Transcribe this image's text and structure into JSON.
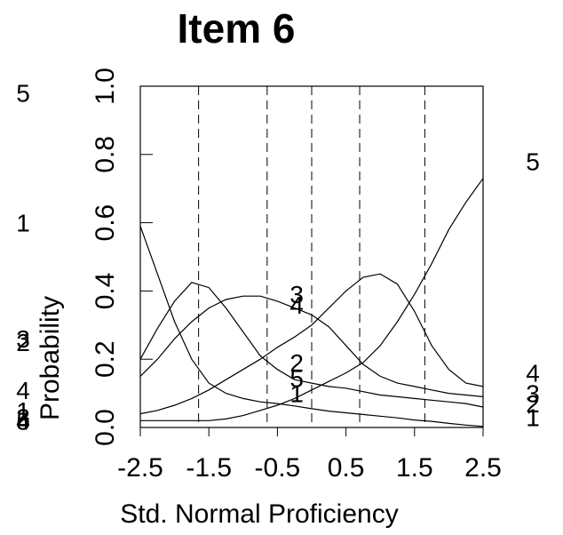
{
  "chart_data": {
    "type": "line",
    "title": "Item 6",
    "xlabel": "Std. Normal Proficiency",
    "ylabel": "Probability",
    "xlim": [
      -2.5,
      2.5
    ],
    "ylim": [
      0,
      1
    ],
    "x_ticks": [
      "-2.5",
      "-1.5",
      "-0.5",
      "0.5",
      "1.5",
      "2.5"
    ],
    "y_ticks": [
      "0.0",
      "0.2",
      "0.4",
      "0.6",
      "0.8",
      "1.0"
    ],
    "grid": false,
    "vlines_dashed": [
      -1.65,
      -0.65,
      0.0,
      0.7,
      1.65
    ],
    "x": [
      -2.5,
      -2.25,
      -2.0,
      -1.75,
      -1.5,
      -1.25,
      -1.0,
      -0.75,
      -0.5,
      -0.25,
      0.0,
      0.25,
      0.5,
      0.75,
      1.0,
      1.25,
      1.5,
      1.75,
      2.0,
      2.25,
      2.5
    ],
    "series": [
      {
        "name": "1",
        "values": [
          0.59,
          0.45,
          0.31,
          0.2,
          0.13,
          0.1,
          0.085,
          0.075,
          0.07,
          0.063,
          0.055,
          0.048,
          0.043,
          0.038,
          0.033,
          0.028,
          0.022,
          0.018,
          0.012,
          0.007,
          0.003
        ]
      },
      {
        "name": "2",
        "values": [
          0.2,
          0.29,
          0.37,
          0.425,
          0.41,
          0.35,
          0.28,
          0.21,
          0.17,
          0.14,
          0.13,
          0.12,
          0.115,
          0.105,
          0.095,
          0.09,
          0.085,
          0.08,
          0.075,
          0.07,
          0.06
        ]
      },
      {
        "name": "3",
        "values": [
          0.15,
          0.2,
          0.26,
          0.31,
          0.35,
          0.375,
          0.385,
          0.385,
          0.37,
          0.35,
          0.33,
          0.295,
          0.24,
          0.185,
          0.15,
          0.13,
          0.12,
          0.11,
          0.1,
          0.095,
          0.09
        ]
      },
      {
        "name": "4",
        "values": [
          0.04,
          0.05,
          0.065,
          0.085,
          0.11,
          0.14,
          0.17,
          0.2,
          0.235,
          0.265,
          0.3,
          0.35,
          0.4,
          0.44,
          0.45,
          0.42,
          0.34,
          0.24,
          0.17,
          0.13,
          0.12
        ]
      },
      {
        "name": "5",
        "values": [
          0.02,
          0.02,
          0.02,
          0.02,
          0.02,
          0.025,
          0.035,
          0.05,
          0.065,
          0.085,
          0.11,
          0.135,
          0.16,
          0.19,
          0.24,
          0.31,
          0.39,
          0.48,
          0.58,
          0.66,
          0.73
        ]
      }
    ],
    "left_labels": [
      {
        "text": "5",
        "y": 0.98
      },
      {
        "text": "1",
        "y": 0.6
      },
      {
        "text": "2",
        "y": 0.25
      },
      {
        "text": "3",
        "y": 0.26
      },
      {
        "text": "4",
        "y": 0.11
      },
      {
        "text": "1",
        "y": 0.05
      },
      {
        "text": "3",
        "y": 0.03
      },
      {
        "text": "2",
        "y": 0.03
      },
      {
        "text": "4",
        "y": 0.02
      },
      {
        "text": "5",
        "y": 0.02
      }
    ],
    "right_labels": [
      {
        "text": "5",
        "y": 0.78
      },
      {
        "text": "4",
        "y": 0.16
      },
      {
        "text": "3",
        "y": 0.1
      },
      {
        "text": "2",
        "y": 0.07
      },
      {
        "text": "1",
        "y": 0.03
      }
    ],
    "mid_labels": [
      {
        "text": "3",
        "x": -0.4,
        "y": 0.39
      },
      {
        "text": "4",
        "x": -0.4,
        "y": 0.36
      },
      {
        "text": "2",
        "x": -0.4,
        "y": 0.19
      },
      {
        "text": "5",
        "x": -0.4,
        "y": 0.145
      },
      {
        "text": "1",
        "x": -0.4,
        "y": 0.1
      }
    ]
  }
}
